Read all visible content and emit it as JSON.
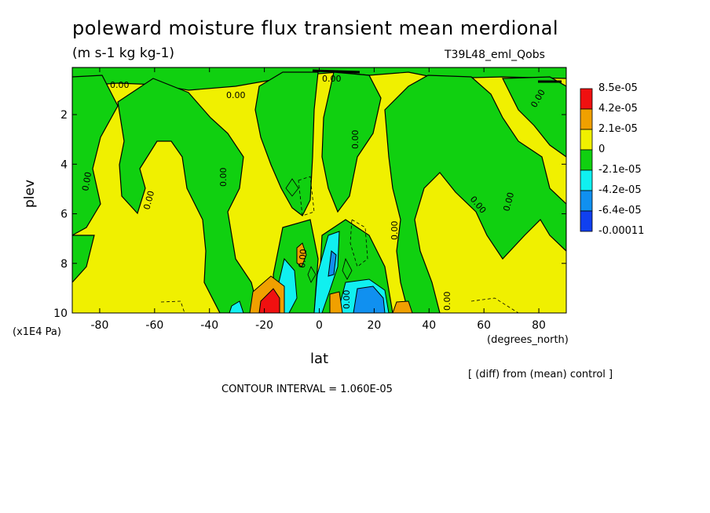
{
  "chart_data": {
    "type": "heatmap",
    "title": "poleward moisture flux transient mean merdional",
    "units": "(m s-1 kg kg-1)",
    "run_label": "T39L48_eml_Qobs",
    "xlabel": "lat",
    "x_units": "(degrees_north)",
    "ylabel": "plev",
    "y_units": "(x1E4 Pa)",
    "x_ticks": [
      "-80",
      "-60",
      "-40",
      "-20",
      "0",
      "20",
      "40",
      "60",
      "80"
    ],
    "x_tick_values": [
      -80,
      -60,
      -40,
      -20,
      0,
      20,
      40,
      60,
      80
    ],
    "y_ticks": [
      "2",
      "4",
      "6",
      "8",
      "10"
    ],
    "y_tick_values": [
      2,
      4,
      6,
      8,
      10
    ],
    "xlim": [
      -90,
      90
    ],
    "ylim": [
      0.1,
      10
    ],
    "y_inverted": true,
    "colorbar": {
      "levels": [
        "8.5e-05",
        "4.2e-05",
        "2.1e-05",
        "0",
        "-2.1e-05",
        "-4.2e-05",
        "-6.4e-05",
        "-0.00011"
      ],
      "colors": [
        "#f01010",
        "#f0a000",
        "#f0f000",
        "#10d010",
        "#10f0f0",
        "#1090f0",
        "#1040f0"
      ]
    },
    "contour_labels": [
      "0.00",
      "0.00",
      "0.00",
      "0.00",
      "0.00",
      "0.00",
      "0.00",
      "0.00",
      "0.00",
      "0.00",
      "0.00",
      "0.00",
      "0.00",
      "0.00"
    ],
    "note": "[ (diff) from (mean) control ]",
    "contour_interval": "CONTOUR INTERVAL = 1.060E-05"
  }
}
